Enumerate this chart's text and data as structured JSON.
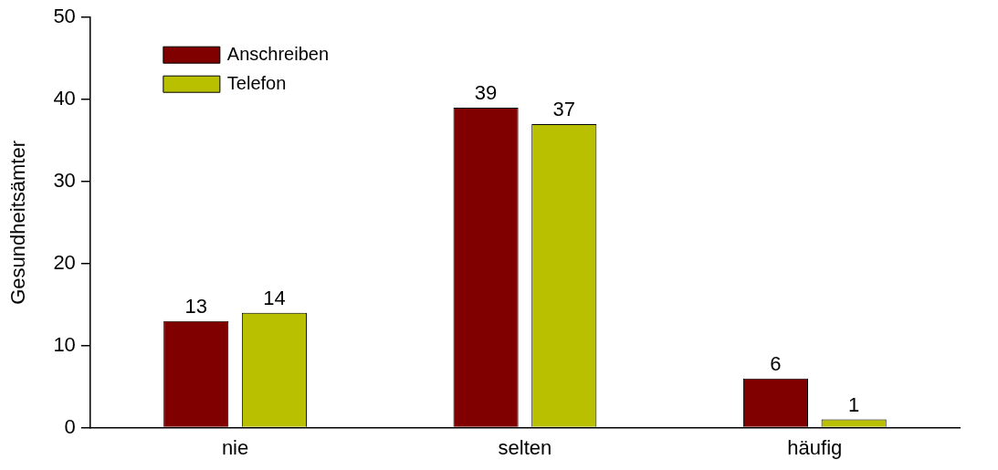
{
  "chart_data": {
    "type": "bar",
    "ylabel": "Gesundheitsämter",
    "categories": [
      "nie",
      "selten",
      "häufig"
    ],
    "series": [
      {
        "name": "Anschreiben",
        "color": "#800000",
        "values": [
          13,
          39,
          6
        ]
      },
      {
        "name": "Telefon",
        "color": "#b8c000",
        "values": [
          14,
          37,
          1
        ]
      }
    ],
    "ylim": [
      0,
      50
    ],
    "yticks": [
      0,
      10,
      20,
      30,
      40,
      50
    ],
    "grid": false,
    "legend": "top left",
    "data_labels": true
  }
}
